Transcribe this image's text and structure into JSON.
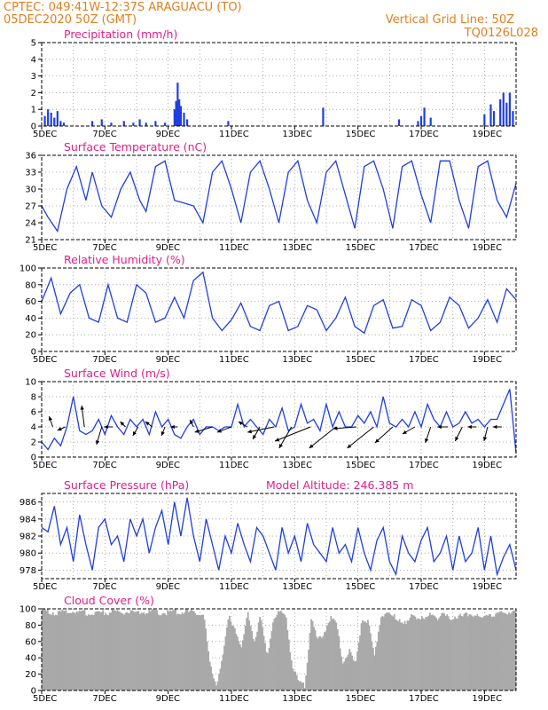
{
  "header": {
    "line1": "CPTEC:   049:41W-12:37S   ARAGUACU (TO)",
    "line2_left": "05DEC2020 50Z (GMT)",
    "line2_right": "Vertical Grid Line: 50Z",
    "code": "TQ0126L028"
  },
  "colors": {
    "header": "#e08020",
    "title": "#e0208a",
    "series": "#1f3fe0",
    "cloud": "#a9a9a9"
  },
  "x_ticks": [
    "5DEC",
    "7DEC",
    "9DEC",
    "11DEC",
    "13DEC",
    "15DEC",
    "17DEC",
    "19DEC"
  ],
  "chart_data": [
    {
      "id": "precip",
      "type": "bar",
      "title": "Precipitation (mm/h)",
      "xlabel": "",
      "ylabel": "",
      "ylim": [
        0,
        5
      ],
      "yticks": [
        0,
        1,
        2,
        3,
        4,
        5
      ],
      "days": [
        5,
        20
      ],
      "grid": true,
      "x": [
        5.1,
        5.2,
        5.3,
        5.4,
        5.5,
        5.6,
        5.7,
        6.6,
        6.9,
        7.2,
        7.6,
        7.9,
        8.1,
        8.3,
        8.6,
        8.9,
        9.2,
        9.25,
        9.3,
        9.35,
        9.4,
        9.5,
        9.6,
        10.9,
        13.9,
        16.3,
        16.9,
        17.0,
        17.1,
        17.3,
        19.0,
        19.2,
        19.3,
        19.5,
        19.6,
        19.7,
        19.8,
        19.9
      ],
      "values": [
        0.6,
        1.0,
        0.8,
        0.5,
        0.9,
        0.3,
        0.2,
        0.3,
        0.4,
        0.2,
        0.3,
        0.2,
        0.4,
        0.2,
        0.3,
        0.2,
        1.0,
        1.5,
        2.6,
        1.6,
        1.2,
        0.8,
        0.4,
        0.3,
        1.1,
        0.4,
        0.3,
        0.6,
        1.1,
        0.5,
        0.7,
        1.3,
        0.9,
        1.6,
        2.0,
        1.4,
        2.0,
        0.9
      ]
    },
    {
      "id": "temp",
      "type": "line",
      "title": "Surface Temperature (nC)",
      "ylim": [
        21,
        36
      ],
      "yticks": [
        21,
        24,
        27,
        30,
        33,
        36
      ],
      "days": [
        5,
        20
      ],
      "grid": true,
      "x": [
        5.0,
        5.2,
        5.5,
        5.8,
        6.1,
        6.4,
        6.6,
        6.9,
        7.2,
        7.5,
        7.8,
        8.1,
        8.3,
        8.6,
        8.9,
        9.2,
        9.5,
        9.8,
        10.1,
        10.4,
        10.7,
        11.0,
        11.3,
        11.6,
        11.9,
        12.2,
        12.5,
        12.8,
        13.1,
        13.4,
        13.7,
        14.0,
        14.3,
        14.6,
        14.9,
        15.2,
        15.5,
        15.8,
        16.1,
        16.4,
        16.7,
        17.0,
        17.3,
        17.6,
        17.9,
        18.2,
        18.5,
        18.8,
        19.1,
        19.4,
        19.7,
        20.0
      ],
      "values": [
        27,
        25,
        22.5,
        30,
        34,
        28,
        33,
        27,
        25,
        30,
        33,
        28,
        26,
        34,
        35,
        28,
        27.5,
        27,
        24,
        33,
        35,
        30,
        24,
        33,
        35,
        30,
        24,
        33,
        35,
        28,
        24,
        33,
        35,
        29,
        23,
        34,
        35,
        30,
        23,
        34,
        35,
        29,
        24,
        35,
        35,
        28,
        23,
        34,
        35,
        28,
        25,
        31
      ]
    },
    {
      "id": "rh",
      "type": "line",
      "title": "Relative Humidity (%)",
      "ylim": [
        0,
        100
      ],
      "yticks": [
        0,
        20,
        40,
        60,
        80,
        100
      ],
      "days": [
        5,
        20
      ],
      "grid": true,
      "x": [
        5.0,
        5.3,
        5.6,
        5.9,
        6.2,
        6.5,
        6.8,
        7.1,
        7.4,
        7.7,
        8.0,
        8.3,
        8.6,
        8.9,
        9.2,
        9.5,
        9.8,
        10.1,
        10.4,
        10.7,
        11.0,
        11.3,
        11.6,
        11.9,
        12.2,
        12.5,
        12.8,
        13.1,
        13.4,
        13.7,
        14.0,
        14.3,
        14.6,
        14.9,
        15.2,
        15.5,
        15.8,
        16.1,
        16.4,
        16.7,
        17.0,
        17.3,
        17.6,
        17.9,
        18.2,
        18.5,
        18.8,
        19.1,
        19.4,
        19.7,
        20.0
      ],
      "values": [
        60,
        88,
        45,
        70,
        80,
        40,
        35,
        80,
        40,
        35,
        80,
        70,
        35,
        40,
        65,
        40,
        85,
        95,
        40,
        25,
        38,
        58,
        30,
        25,
        55,
        60,
        25,
        30,
        55,
        50,
        25,
        40,
        65,
        30,
        22,
        55,
        62,
        28,
        30,
        62,
        55,
        25,
        35,
        65,
        55,
        28,
        40,
        62,
        35,
        75,
        62
      ]
    },
    {
      "id": "wind",
      "type": "line",
      "title": "Surface Wind (m/s)",
      "ylim": [
        0,
        10
      ],
      "yticks": [
        0,
        2,
        4,
        6,
        8,
        10
      ],
      "days": [
        5,
        20
      ],
      "grid": true,
      "x": [
        5.0,
        5.2,
        5.4,
        5.6,
        5.8,
        6.0,
        6.2,
        6.4,
        6.6,
        6.8,
        7.0,
        7.2,
        7.4,
        7.6,
        7.8,
        8.0,
        8.2,
        8.4,
        8.6,
        8.8,
        9.0,
        9.2,
        9.4,
        9.6,
        9.8,
        10.0,
        10.2,
        10.4,
        10.6,
        10.8,
        11.0,
        11.2,
        11.4,
        11.6,
        11.8,
        12.0,
        12.2,
        12.4,
        12.6,
        12.8,
        13.0,
        13.2,
        13.4,
        13.6,
        13.8,
        14.0,
        14.2,
        14.4,
        14.6,
        14.8,
        15.0,
        15.2,
        15.4,
        15.6,
        15.8,
        16.0,
        16.2,
        16.4,
        16.6,
        16.8,
        17.0,
        17.2,
        17.4,
        17.6,
        17.8,
        18.0,
        18.2,
        18.4,
        18.6,
        18.8,
        19.0,
        19.2,
        19.4,
        19.6,
        19.8,
        20.0
      ],
      "values": [
        2,
        1,
        2.5,
        1.5,
        4,
        8,
        3.5,
        3,
        3.5,
        5,
        3,
        5.5,
        4,
        3,
        5,
        4,
        5,
        3,
        6,
        4,
        5,
        3,
        2.5,
        4,
        5,
        3,
        4,
        4,
        3.5,
        4,
        4,
        7,
        4,
        5,
        4,
        3,
        5,
        4,
        6.5,
        3.5,
        4,
        7,
        4.5,
        5,
        3.5,
        7,
        4,
        6,
        4,
        4,
        5.5,
        4.5,
        6,
        4,
        8,
        4.5,
        4,
        5,
        4,
        6,
        4,
        7,
        5,
        4,
        6,
        4,
        4.5,
        6,
        4.5,
        5,
        4,
        5,
        5,
        7,
        9,
        0.5
      ],
      "arrows": [
        {
          "x": 5.35,
          "dx": -4,
          "dy": -12
        },
        {
          "x": 5.75,
          "dx": -9,
          "dy": 4
        },
        {
          "x": 6.35,
          "dx": -3,
          "dy": -24
        },
        {
          "x": 6.9,
          "dx": -6,
          "dy": 20
        },
        {
          "x": 7.25,
          "dx": -10,
          "dy": 0
        },
        {
          "x": 7.65,
          "dx": -6,
          "dy": -6
        },
        {
          "x": 8.05,
          "dx": -6,
          "dy": 10
        },
        {
          "x": 8.5,
          "dx": -8,
          "dy": -6
        },
        {
          "x": 8.9,
          "dx": -4,
          "dy": 10
        },
        {
          "x": 9.3,
          "dx": -8,
          "dy": 0
        },
        {
          "x": 9.8,
          "dx": -4,
          "dy": -8
        },
        {
          "x": 10.4,
          "dx": -20,
          "dy": 6
        },
        {
          "x": 11.0,
          "dx": -16,
          "dy": 6
        },
        {
          "x": 11.5,
          "dx": -10,
          "dy": -6
        },
        {
          "x": 11.9,
          "dx": -8,
          "dy": 14
        },
        {
          "x": 12.35,
          "dx": -30,
          "dy": 6
        },
        {
          "x": 12.9,
          "dx": -14,
          "dy": 24
        },
        {
          "x": 13.5,
          "dx": -40,
          "dy": 16
        },
        {
          "x": 14.3,
          "dx": -30,
          "dy": 24
        },
        {
          "x": 14.95,
          "dx": -26,
          "dy": 2
        },
        {
          "x": 15.5,
          "dx": -30,
          "dy": 24
        },
        {
          "x": 16.1,
          "dx": -20,
          "dy": 18
        },
        {
          "x": 16.8,
          "dx": -14,
          "dy": 8
        },
        {
          "x": 17.3,
          "dx": -6,
          "dy": 18
        },
        {
          "x": 17.85,
          "dx": -12,
          "dy": 0
        },
        {
          "x": 18.3,
          "dx": -8,
          "dy": 16
        },
        {
          "x": 18.75,
          "dx": -10,
          "dy": 0
        },
        {
          "x": 19.1,
          "dx": -4,
          "dy": 16
        },
        {
          "x": 19.55,
          "dx": -10,
          "dy": 0
        }
      ]
    },
    {
      "id": "pressure",
      "type": "line",
      "title": "Surface Pressure (hPa)",
      "annotation": "Model Altitude: 246.385 m",
      "ylim": [
        977,
        987
      ],
      "yticks": [
        978,
        980,
        982,
        984,
        986
      ],
      "days": [
        5,
        20
      ],
      "grid": true,
      "x": [
        5.0,
        5.2,
        5.4,
        5.6,
        5.8,
        6.0,
        6.2,
        6.4,
        6.6,
        6.8,
        7.0,
        7.2,
        7.4,
        7.6,
        7.8,
        8.0,
        8.2,
        8.4,
        8.6,
        8.8,
        9.0,
        9.2,
        9.4,
        9.6,
        9.8,
        10.0,
        10.2,
        10.4,
        10.6,
        10.8,
        11.0,
        11.2,
        11.4,
        11.6,
        11.8,
        12.0,
        12.2,
        12.4,
        12.6,
        12.8,
        13.0,
        13.2,
        13.4,
        13.6,
        13.8,
        14.0,
        14.2,
        14.4,
        14.6,
        14.8,
        15.0,
        15.2,
        15.4,
        15.6,
        15.8,
        16.0,
        16.2,
        16.4,
        16.6,
        16.8,
        17.0,
        17.2,
        17.4,
        17.6,
        17.8,
        18.0,
        18.2,
        18.4,
        18.6,
        18.8,
        19.0,
        19.2,
        19.4,
        19.6,
        19.8,
        20.0
      ],
      "values": [
        983,
        982.5,
        985.5,
        981,
        983,
        979,
        984.5,
        981,
        978,
        983,
        984,
        981,
        982,
        979,
        984,
        982,
        984,
        980,
        983,
        985,
        981,
        986,
        982,
        986.5,
        982,
        979,
        984,
        981,
        978,
        982,
        980,
        983.5,
        981,
        979,
        983,
        982,
        980,
        978,
        983,
        980,
        982,
        979,
        983.5,
        981,
        980,
        979,
        983,
        980,
        981,
        979,
        983,
        980,
        978,
        981.5,
        983,
        979,
        977.5,
        982,
        980,
        979,
        981.5,
        983,
        979,
        980,
        982,
        978,
        982,
        979,
        980,
        983,
        978,
        982,
        977.5,
        979.5,
        981,
        978
      ]
    },
    {
      "id": "cloud",
      "type": "area",
      "title": "Cloud Cover (%)",
      "ylim": [
        0,
        100
      ],
      "yticks": [
        0,
        20,
        40,
        60,
        80,
        100
      ],
      "days": [
        5,
        20
      ],
      "grid": true,
      "x": [
        5.0,
        5.3,
        5.6,
        5.9,
        6.2,
        6.5,
        6.8,
        7.1,
        7.4,
        7.7,
        8.0,
        8.3,
        8.6,
        8.9,
        9.2,
        9.5,
        9.8,
        10.1,
        10.3,
        10.5,
        10.7,
        10.9,
        11.1,
        11.3,
        11.5,
        11.7,
        11.9,
        12.1,
        12.3,
        12.5,
        12.7,
        12.9,
        13.1,
        13.3,
        13.5,
        13.7,
        13.9,
        14.1,
        14.3,
        14.5,
        14.7,
        14.9,
        15.1,
        15.3,
        15.5,
        15.7,
        15.9,
        16.1,
        16.3,
        16.5,
        16.7,
        16.9,
        17.1,
        17.3,
        17.5,
        17.7,
        17.9,
        18.1,
        18.3,
        18.5,
        18.7,
        18.9,
        19.1,
        19.3,
        19.5,
        19.7,
        20.0
      ],
      "values": [
        97,
        96,
        95,
        97,
        94,
        96,
        95,
        96,
        95,
        96,
        95,
        97,
        96,
        95,
        97,
        96,
        95,
        94,
        30,
        8,
        40,
        92,
        75,
        50,
        95,
        60,
        90,
        40,
        88,
        95,
        92,
        30,
        10,
        5,
        88,
        60,
        70,
        90,
        80,
        35,
        50,
        30,
        88,
        85,
        40,
        92,
        95,
        90,
        88,
        80,
        93,
        90,
        85,
        95,
        90,
        92,
        88,
        92,
        90,
        94,
        92,
        88,
        95,
        93,
        94,
        96,
        95
      ]
    }
  ]
}
